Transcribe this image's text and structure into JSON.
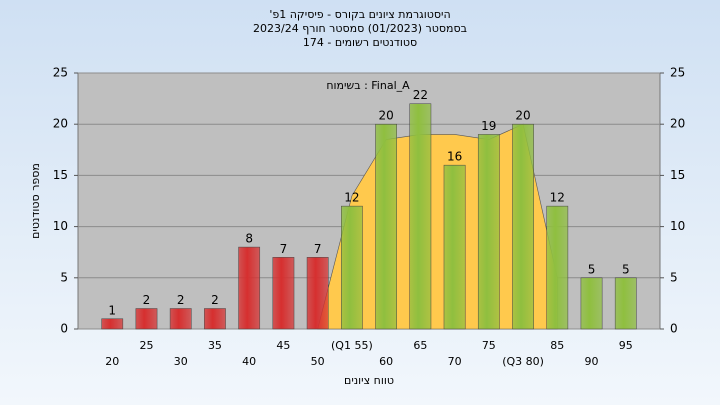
{
  "chart_data": {
    "type": "bar",
    "title": [
      "היסטוגרמת ציונים בקורס - פיסיקה 1פ'",
      "בסמסטר (01/2023) סמסטר חורף 2023/24",
      "סטודנטים רשומים - 174"
    ],
    "annotation": "Final_A : בשימוח",
    "y_label": "מספר סטודנטים",
    "x_label": "טווח ציונים",
    "categories": [
      "20",
      "25",
      "30",
      "35",
      "40",
      "45",
      "50",
      "(Q1 55)",
      "60",
      "65",
      "70",
      "75",
      "(Q3 80)",
      "85",
      "90",
      "95"
    ],
    "values": [
      1,
      2,
      2,
      2,
      8,
      7,
      7,
      12,
      20,
      22,
      16,
      19,
      20,
      12,
      5,
      5
    ],
    "colors": [
      "#d62f2f",
      "#d62f2f",
      "#d62f2f",
      "#d62f2f",
      "#d62f2f",
      "#d62f2f",
      "#d62f2f",
      "#8fbf3f",
      "#8fbf3f",
      "#8fbf3f",
      "#8fbf3f",
      "#8fbf3f",
      "#8fbf3f",
      "#8fbf3f",
      "#8fbf3f",
      "#8fbf3f"
    ],
    "area": {
      "color": "#ffc94d",
      "values": [
        null,
        null,
        null,
        null,
        null,
        null,
        0,
        13,
        18.5,
        19,
        19,
        18.5,
        20,
        5,
        null,
        null
      ]
    },
    "ylim": [
      0,
      25
    ],
    "yticks": [
      0,
      5,
      10,
      15,
      20,
      25
    ],
    "grid": true
  }
}
